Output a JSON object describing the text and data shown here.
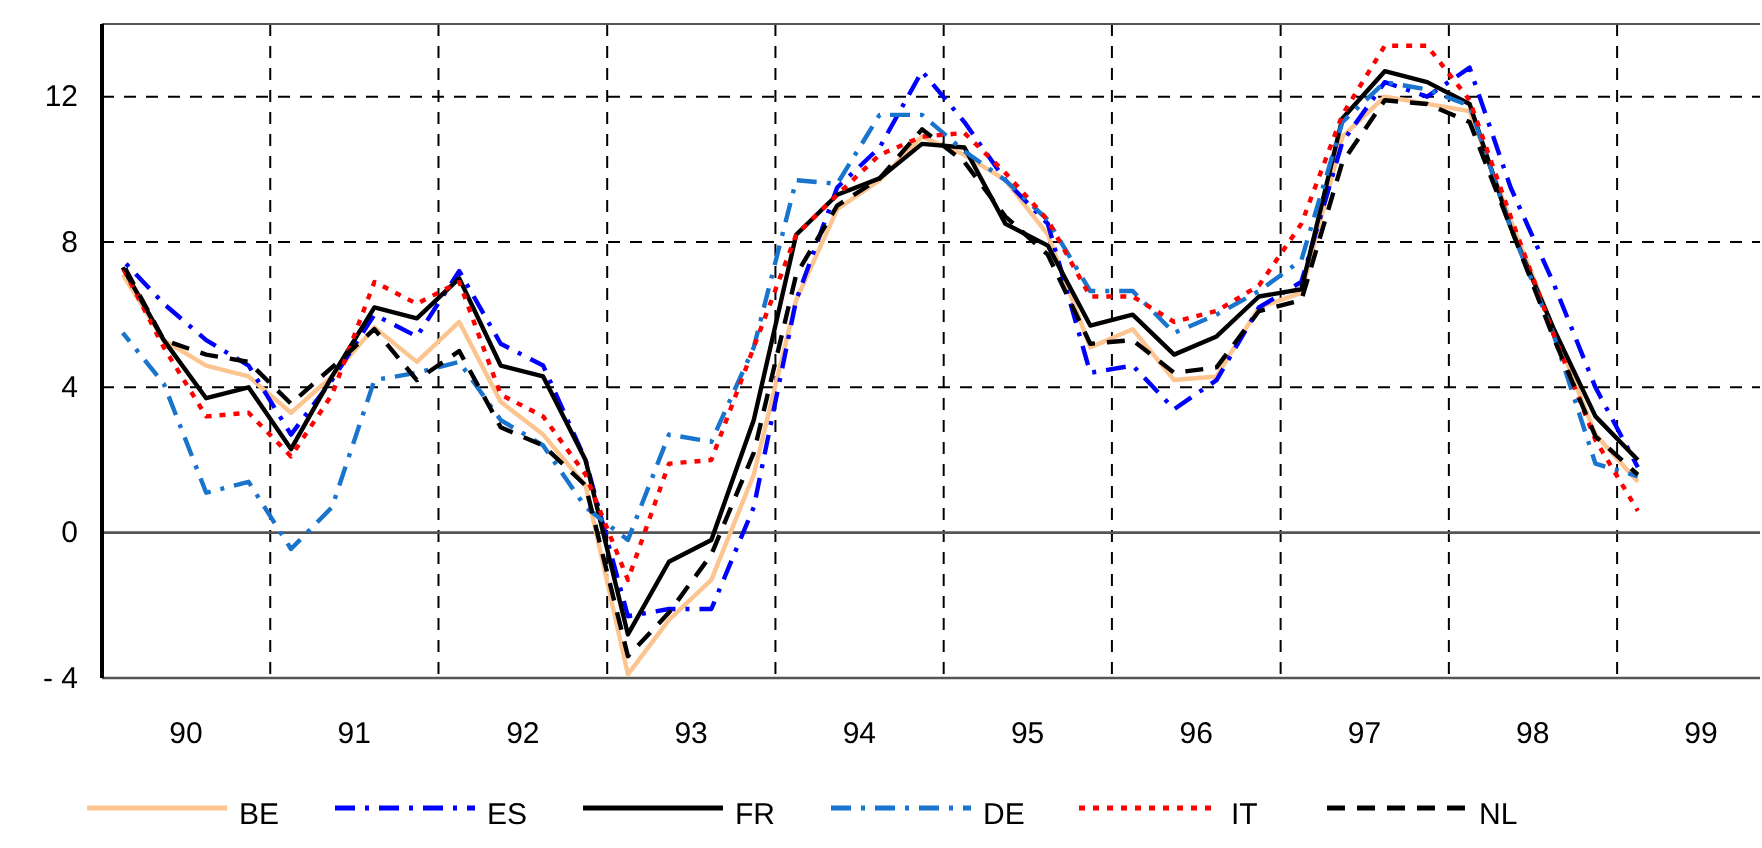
{
  "chart_data": {
    "type": "line",
    "x": [
      "1990-02-15",
      "1990-05-15",
      "1990-08-15",
      "1990-11-15",
      "1991-02-15",
      "1991-05-15",
      "1991-08-15",
      "1991-11-15",
      "1992-02-15",
      "1992-05-15",
      "1992-08-15",
      "1992-11-15",
      "1993-02-15",
      "1993-05-15",
      "1993-08-15",
      "1993-11-15",
      "1994-02-15",
      "1994-05-15",
      "1994-08-15",
      "1994-11-15",
      "1995-02-15",
      "1995-05-15",
      "1995-08-15",
      "1995-11-15",
      "1996-02-15",
      "1996-05-15",
      "1996-08-15",
      "1996-11-15",
      "1997-02-15",
      "1997-05-15",
      "1997-08-15",
      "1997-11-15",
      "1998-02-15",
      "1998-05-15",
      "1998-08-15",
      "1998-11-15",
      "1999-02-15"
    ],
    "xlim": [
      "1990-01-01",
      "1999-11-07"
    ],
    "xticks": [
      {
        "value": "1990-07-02",
        "label": "90"
      },
      {
        "value": "1991-01-01",
        "label": null
      },
      {
        "value": "1991-07-02",
        "label": "91"
      },
      {
        "value": "1992-01-01",
        "label": null
      },
      {
        "value": "1992-07-02",
        "label": "92"
      },
      {
        "value": "1993-01-01",
        "label": null
      },
      {
        "value": "1993-07-02",
        "label": "93"
      },
      {
        "value": "1994-01-01",
        "label": null
      },
      {
        "value": "1994-07-02",
        "label": "94"
      },
      {
        "value": "1995-01-01",
        "label": null
      },
      {
        "value": "1995-07-02",
        "label": "95"
      },
      {
        "value": "1996-01-01",
        "label": null
      },
      {
        "value": "1996-07-02",
        "label": "96"
      },
      {
        "value": "1997-01-01",
        "label": null
      },
      {
        "value": "1997-07-02",
        "label": "97"
      },
      {
        "value": "1998-01-01",
        "label": null
      },
      {
        "value": "1998-07-02",
        "label": "98"
      },
      {
        "value": "1999-01-01",
        "label": null
      },
      {
        "value": "1999-07-02",
        "label": "99"
      }
    ],
    "ylim": [
      -4,
      14
    ],
    "yticks": [
      {
        "value": -4,
        "label": "- 4"
      },
      0,
      4,
      8,
      12
    ],
    "grid": true,
    "legend": "bottom",
    "marker": "none",
    "series": [
      {
        "name": "BE",
        "color": "#fcc590",
        "line_style": "solid",
        "values": [
          7.1,
          5.3,
          4.6,
          4.3,
          3.3,
          4.3,
          5.65,
          4.7,
          5.8,
          3.6,
          2.7,
          1.3,
          -3.9,
          -2.4,
          -1.3,
          1.6,
          6.4,
          8.9,
          9.7,
          10.9,
          10.4,
          9.7,
          8.2,
          5.1,
          5.6,
          4.2,
          4.3,
          6.2,
          6.6,
          10.9,
          12.0,
          11.8,
          11.6,
          8.6,
          5.65,
          2.7,
          1.4
        ]
      },
      {
        "name": "ES",
        "color": "#0000ff",
        "line_style": "dashdot",
        "values": [
          7.5,
          6.3,
          5.3,
          4.6,
          2.7,
          4.2,
          6.0,
          5.4,
          7.2,
          5.2,
          4.6,
          2.0,
          -2.3,
          -2.1,
          -2.1,
          0.7,
          6.4,
          9.5,
          10.6,
          12.7,
          11.3,
          9.7,
          8.5,
          4.4,
          4.6,
          3.4,
          4.2,
          6.2,
          6.9,
          10.75,
          12.4,
          12.0,
          12.8,
          9.5,
          6.9,
          4.0,
          1.8
        ]
      },
      {
        "name": "FR",
        "color": "#000000",
        "line_style": "solid",
        "values": [
          7.3,
          5.3,
          3.7,
          4.0,
          2.3,
          4.3,
          6.2,
          5.9,
          7.0,
          4.6,
          4.3,
          2.0,
          -2.8,
          -0.8,
          -0.2,
          3.1,
          8.2,
          9.3,
          9.75,
          10.7,
          10.6,
          8.5,
          7.9,
          5.7,
          6.0,
          4.9,
          5.4,
          6.5,
          6.7,
          11.4,
          12.7,
          12.4,
          11.8,
          8.4,
          5.65,
          3.2,
          2.0
        ]
      },
      {
        "name": "DE",
        "color": "#1874cd",
        "line_style": "dashdot",
        "values": [
          5.5,
          4.1,
          1.1,
          1.4,
          -0.45,
          0.7,
          4.2,
          4.4,
          4.7,
          3.1,
          2.4,
          0.7,
          -0.2,
          2.7,
          2.5,
          5.1,
          9.7,
          9.6,
          11.5,
          11.5,
          10.5,
          9.7,
          8.6,
          6.65,
          6.65,
          5.5,
          6.0,
          6.65,
          7.5,
          11.3,
          12.4,
          12.2,
          11.75,
          8.4,
          5.5,
          1.9,
          1.55
        ]
      },
      {
        "name": "IT",
        "color": "#ff0000",
        "line_style": "dotted",
        "values": [
          7.3,
          5.1,
          3.2,
          3.3,
          2.1,
          3.8,
          6.9,
          6.3,
          6.9,
          3.8,
          3.2,
          1.6,
          -1.3,
          1.9,
          2.0,
          5.1,
          8.2,
          9.3,
          10.4,
          10.9,
          11.0,
          9.9,
          8.6,
          6.5,
          6.5,
          5.8,
          6.1,
          6.8,
          8.5,
          11.5,
          13.4,
          13.4,
          11.9,
          8.7,
          5.5,
          2.55,
          0.6
        ]
      },
      {
        "name": "NL",
        "color": "#000000",
        "line_style": "dashed",
        "values": [
          7.4,
          5.3,
          4.9,
          4.7,
          3.55,
          4.55,
          5.6,
          4.2,
          5.0,
          2.9,
          2.4,
          1.3,
          -3.4,
          -2.2,
          -0.6,
          2.2,
          7.1,
          9.0,
          9.75,
          11.1,
          10.2,
          8.7,
          7.65,
          5.2,
          5.3,
          4.4,
          4.55,
          6.1,
          6.4,
          10.2,
          11.9,
          11.8,
          11.3,
          8.4,
          5.4,
          2.65,
          1.6
        ]
      }
    ]
  }
}
